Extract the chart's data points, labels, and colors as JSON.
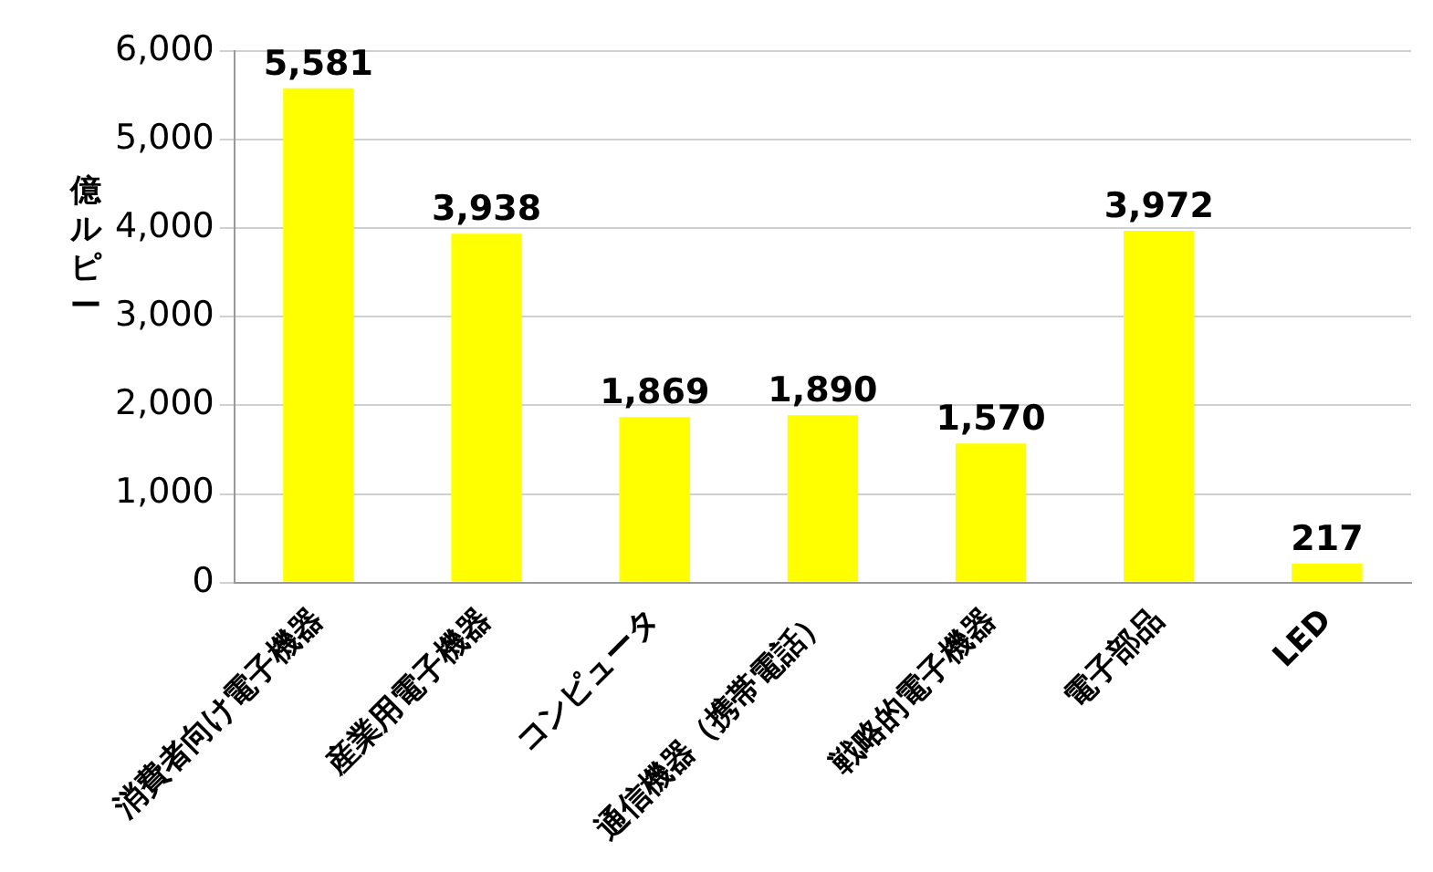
{
  "chart_data": {
    "type": "bar",
    "ylabel": "億ルピー",
    "categories": [
      "消費者向け電子機器",
      "産業用電子機器",
      "コンピュータ",
      "通信機器（携帯電話）",
      "戦略的電子機器",
      "電子部品",
      "LED"
    ],
    "values": [
      5581,
      3938,
      1869,
      1890,
      1570,
      3972,
      217
    ],
    "color": "#ffff00",
    "ylim": [
      0,
      6000
    ],
    "yticks": [
      {
        "value": 0,
        "label": "0"
      },
      {
        "value": 1000,
        "label": "1,000"
      },
      {
        "value": 2000,
        "label": "2,000"
      },
      {
        "value": 3000,
        "label": "3,000"
      },
      {
        "value": 4000,
        "label": "4,000"
      },
      {
        "value": 5000,
        "label": "5,000"
      },
      {
        "value": 6000,
        "label": "6,000"
      }
    ],
    "data_labels": true,
    "value_labels": [
      "5,581",
      "3,938",
      "1,869",
      "1,890",
      "1,570",
      "3,972",
      "217"
    ],
    "grid": "y",
    "legend": false
  }
}
